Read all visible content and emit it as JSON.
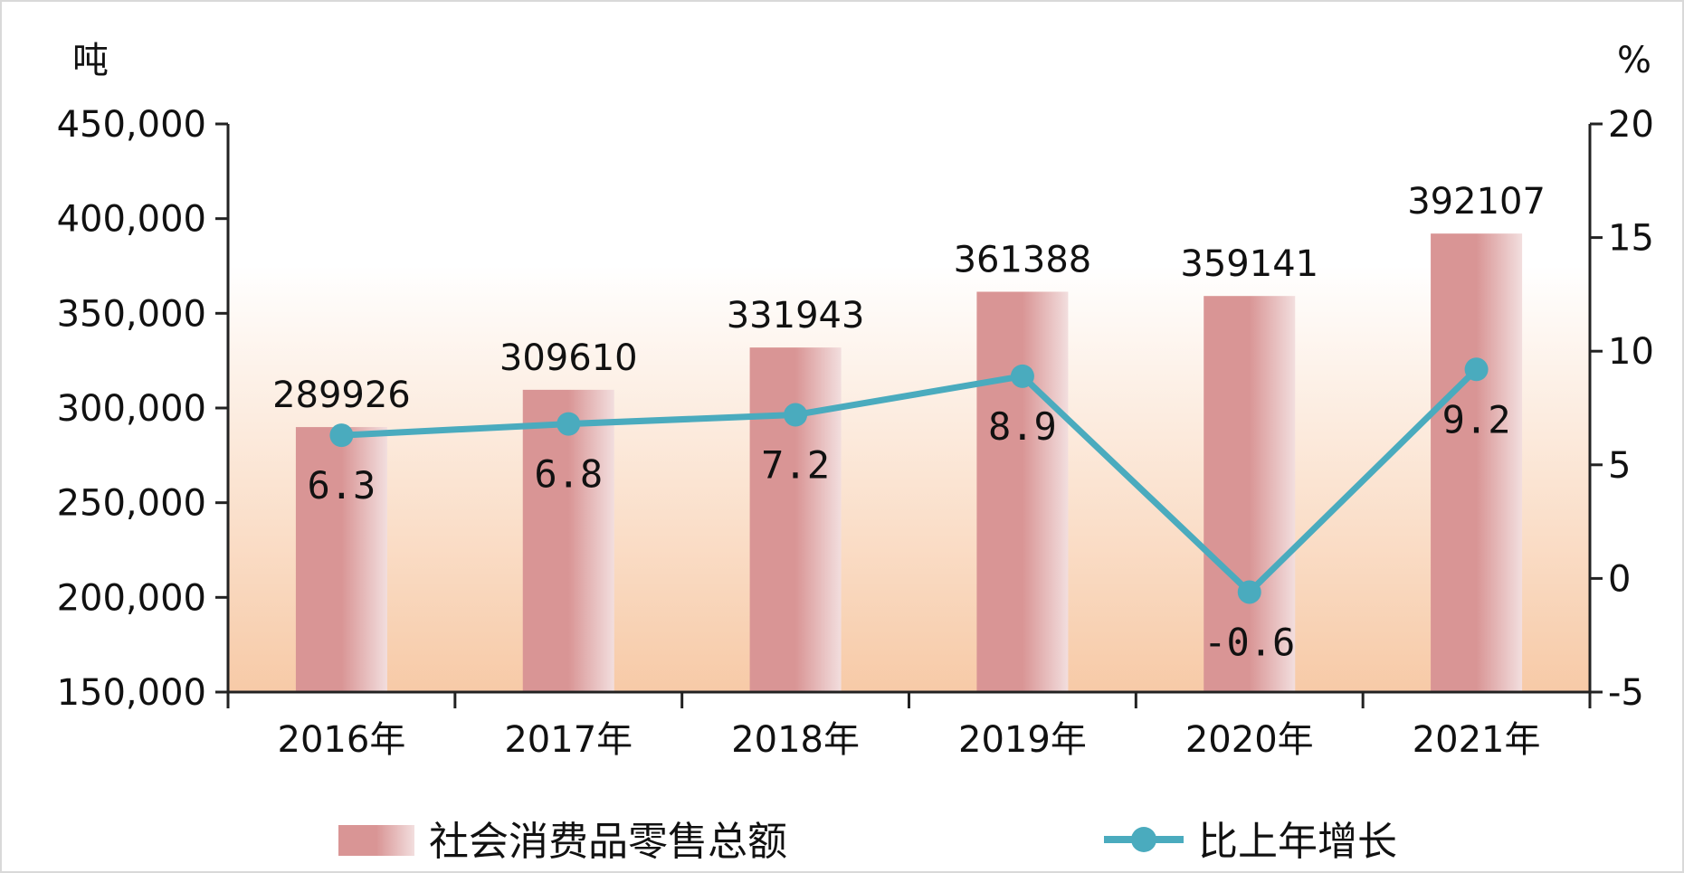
{
  "colors": {
    "bar": "#d99595",
    "bar_light": "#f2dede",
    "line": "#4aabbe",
    "plot_bg_top": "#ffffff",
    "plot_bg_bottom": "#f7caa7",
    "axis": "#222222",
    "text": "#111111"
  },
  "chart_data": {
    "type": "bar",
    "categories": [
      "2016年",
      "2017年",
      "2018年",
      "2019年",
      "2020年",
      "2021年"
    ],
    "series": [
      {
        "name": "社会消费品零售总额",
        "type": "bar",
        "axis": "left",
        "values": [
          289926,
          309610,
          331943,
          361388,
          359141,
          392107
        ],
        "labels": [
          "289926",
          "309610",
          "331943",
          "361388",
          "359141",
          "392107"
        ]
      },
      {
        "name": "比上年增长",
        "type": "line",
        "axis": "right",
        "values": [
          6.3,
          6.8,
          7.2,
          8.9,
          -0.6,
          9.2
        ],
        "labels": [
          "6.3",
          "6.8",
          "7.2",
          "8.9",
          "-0.6",
          "9.2"
        ]
      }
    ],
    "y_left": {
      "unit": "吨",
      "range": [
        150000,
        450000
      ],
      "ticks": [
        150000,
        200000,
        250000,
        300000,
        350000,
        400000,
        450000
      ],
      "tick_labels": [
        "150,000",
        "200,000",
        "250,000",
        "300,000",
        "350,000",
        "400,000",
        "450,000"
      ]
    },
    "y_right": {
      "unit": "%",
      "range": [
        -5,
        20
      ],
      "ticks": [
        -5,
        0,
        5,
        10,
        15,
        20
      ],
      "tick_labels": [
        "-5",
        "0",
        "5",
        "10",
        "15",
        "20"
      ]
    },
    "legend": {
      "placement": "bottom",
      "items": [
        "社会消费品零售总额",
        "比上年增长"
      ]
    },
    "grid": false
  }
}
